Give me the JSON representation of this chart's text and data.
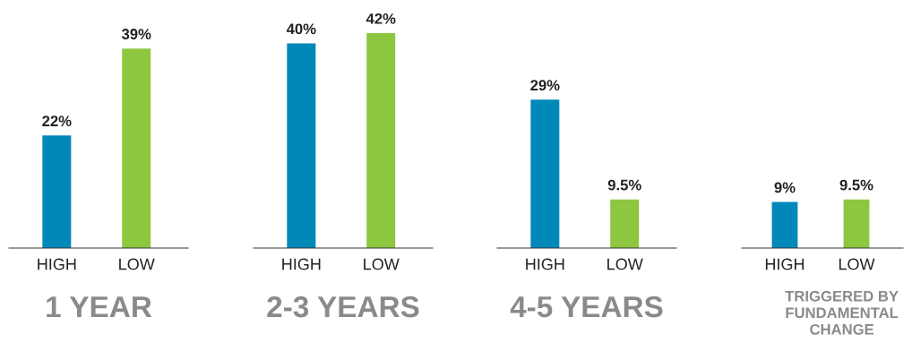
{
  "chart_data": [
    {
      "type": "bar",
      "categories": [
        "HIGH",
        "LOW"
      ],
      "values": [
        22,
        39
      ],
      "colors": [
        "#0088b9",
        "#8dc63f"
      ],
      "data_labels": true,
      "value_labels": [
        "22%",
        "39%"
      ],
      "xlabel": "1 YEAR",
      "tick_labels": "x",
      "grid": false,
      "legend": false
    },
    {
      "type": "bar",
      "categories": [
        "HIGH",
        "LOW"
      ],
      "values": [
        40,
        42
      ],
      "colors": [
        "#0088b9",
        "#8dc63f"
      ],
      "data_labels": true,
      "value_labels": [
        "40%",
        "42%"
      ],
      "xlabel": "2-3 YEARS",
      "tick_labels": "x",
      "grid": false,
      "legend": false
    },
    {
      "type": "bar",
      "categories": [
        "HIGH",
        "LOW"
      ],
      "values": [
        29,
        9.5
      ],
      "colors": [
        "#0088b9",
        "#8dc63f"
      ],
      "data_labels": true,
      "value_labels": [
        "29%",
        "9.5%"
      ],
      "xlabel": "4-5 YEARS",
      "tick_labels": "x",
      "grid": false,
      "legend": false
    },
    {
      "type": "bar",
      "categories": [
        "HIGH",
        "LOW"
      ],
      "values": [
        9,
        9.5
      ],
      "colors": [
        "#0088b9",
        "#8dc63f"
      ],
      "data_labels": true,
      "value_labels": [
        "9%",
        "9.5%"
      ],
      "xlabel": "TRIGGERED BY\nFUNDAMENTAL\nCHANGE",
      "tick_labels": "x",
      "grid": false,
      "legend": false
    }
  ]
}
